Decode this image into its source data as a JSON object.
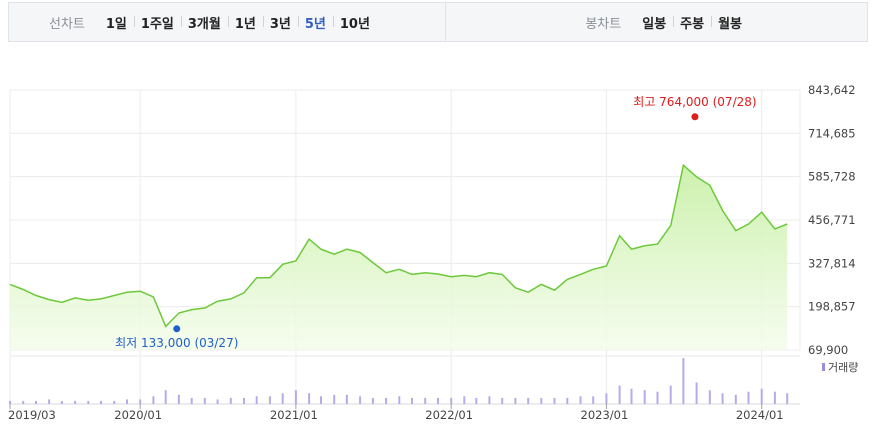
{
  "toolbar": {
    "line_label": "선차트",
    "line_periods": [
      "1일",
      "1주일",
      "3개월",
      "1년",
      "3년",
      "5년",
      "10년"
    ],
    "active_period": "5년",
    "candle_label": "봉차트",
    "candle_periods": [
      "일봉",
      "주봉",
      "월봉"
    ]
  },
  "chart_data": {
    "type": "area",
    "x_ticks": [
      "2019/03",
      "2020/01",
      "2021/01",
      "2022/01",
      "2023/01",
      "2024/01"
    ],
    "y_ticks": [
      "843,642",
      "714,685",
      "585,728",
      "456,771",
      "327,814",
      "198,857",
      "69,900"
    ],
    "ylim": [
      69900,
      843642
    ],
    "high_label": "최고 764,000 (07/28)",
    "high_point": {
      "x": "2023/07/28",
      "y": 764000
    },
    "low_label": "최저 133,000 (03/27)",
    "low_point": {
      "x": "2020/03/27",
      "y": 133000
    },
    "volume_legend": "거래량",
    "series": [
      {
        "x": [
          "2019/03",
          "2019/04",
          "2019/05",
          "2019/06",
          "2019/07",
          "2019/08",
          "2019/09",
          "2019/10",
          "2019/11",
          "2019/12",
          "2020/01",
          "2020/02",
          "2020/03",
          "2020/04",
          "2020/05",
          "2020/06",
          "2020/07",
          "2020/08",
          "2020/09",
          "2020/10",
          "2020/11",
          "2020/12",
          "2021/01",
          "2021/02",
          "2021/03",
          "2021/04",
          "2021/05",
          "2021/06",
          "2021/07",
          "2021/08",
          "2021/09",
          "2021/10",
          "2021/11",
          "2021/12",
          "2022/01",
          "2022/02",
          "2022/03",
          "2022/04",
          "2022/05",
          "2022/06",
          "2022/07",
          "2022/08",
          "2022/09",
          "2022/10",
          "2022/11",
          "2022/12",
          "2023/01",
          "2023/02",
          "2023/03",
          "2023/04",
          "2023/05",
          "2023/06",
          "2023/07",
          "2023/08",
          "2023/09",
          "2023/10",
          "2023/11",
          "2023/12",
          "2024/01",
          "2024/02",
          "2024/03"
        ],
        "values": [
          265000,
          250000,
          232000,
          220000,
          212000,
          225000,
          218000,
          222000,
          232000,
          242000,
          245000,
          228000,
          140000,
          180000,
          190000,
          195000,
          215000,
          222000,
          240000,
          285000,
          285000,
          325000,
          335000,
          400000,
          370000,
          355000,
          370000,
          360000,
          330000,
          300000,
          310000,
          295000,
          300000,
          296000,
          288000,
          292000,
          288000,
          300000,
          295000,
          255000,
          242000,
          265000,
          248000,
          280000,
          295000,
          310000,
          320000,
          410000,
          370000,
          380000,
          385000,
          440000,
          620000,
          585000,
          560000,
          485000,
          425000,
          445000,
          480000,
          430000,
          445000
        ],
        "volume": [
          2,
          2,
          2,
          3,
          2,
          2,
          2,
          2,
          2,
          3,
          3,
          5,
          9,
          6,
          4,
          4,
          3,
          4,
          4,
          5,
          5,
          7,
          9,
          7,
          5,
          6,
          6,
          5,
          4,
          4,
          5,
          4,
          4,
          4,
          4,
          5,
          4,
          5,
          4,
          4,
          4,
          4,
          4,
          4,
          5,
          5,
          7,
          12,
          10,
          9,
          8,
          12,
          30,
          14,
          9,
          7,
          6,
          8,
          10,
          8,
          7
        ]
      }
    ]
  }
}
